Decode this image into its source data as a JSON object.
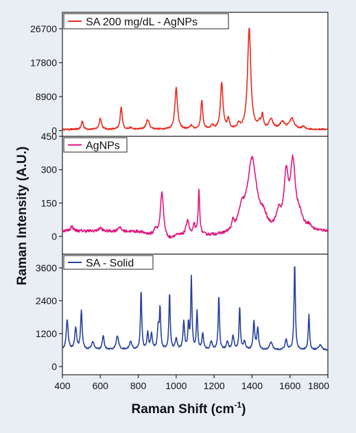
{
  "figure": {
    "xlabel_main": "Raman Shift (cm",
    "xlabel_sup": "-1",
    "xlabel_tail": ")",
    "ylabel": "Raman Intensity (A.U.)",
    "x_ticks": [
      "400",
      "600",
      "800",
      "1000",
      "1200",
      "1400",
      "1600",
      "1800"
    ]
  },
  "chart_data": [
    {
      "type": "line",
      "series": [
        {
          "name": "SA 200 mg/dL - AgNPs",
          "color": "#e8291c"
        }
      ],
      "xlim": [
        400,
        1800
      ],
      "ylim": [
        -1500,
        31000
      ],
      "y_ticks": [
        0,
        8900,
        17800,
        26700
      ],
      "y_tick_labels": [
        "0",
        "8900",
        "17800",
        "26700"
      ],
      "baseline": 300,
      "peaks": [
        [
          505,
          2200,
          6
        ],
        [
          600,
          3000,
          7
        ],
        [
          710,
          6000,
          6
        ],
        [
          760,
          400,
          8
        ],
        [
          850,
          2500,
          10
        ],
        [
          1000,
          11000,
          8
        ],
        [
          1080,
          1000,
          7
        ],
        [
          1135,
          7500,
          6
        ],
        [
          1190,
          1000,
          8
        ],
        [
          1240,
          12000,
          8
        ],
        [
          1275,
          2500,
          6
        ],
        [
          1330,
          1200,
          8
        ],
        [
          1385,
          26500,
          10
        ],
        [
          1440,
          1500,
          10
        ],
        [
          1455,
          3500,
          5
        ],
        [
          1500,
          2500,
          12
        ],
        [
          1560,
          1800,
          15
        ],
        [
          1610,
          2800,
          14
        ],
        [
          1670,
          700,
          8
        ]
      ]
    },
    {
      "type": "line",
      "series": [
        {
          "name": "AgNPs",
          "color": "#e0157f"
        }
      ],
      "xlim": [
        400,
        1800
      ],
      "ylim": [
        -80,
        450
      ],
      "y_ticks": [
        0,
        150,
        300,
        450
      ],
      "y_tick_labels": [
        "0",
        "150",
        "300",
        "450"
      ],
      "baseline": 10,
      "trend": [
        [
          400,
          15
        ],
        [
          800,
          10
        ],
        [
          960,
          -30
        ],
        [
          1000,
          -10
        ],
        [
          1250,
          -10
        ],
        [
          1800,
          10
        ]
      ],
      "peaks": [
        [
          450,
          20,
          8
        ],
        [
          600,
          15,
          10
        ],
        [
          700,
          20,
          10
        ],
        [
          890,
          30,
          8
        ],
        [
          925,
          210,
          10
        ],
        [
          1060,
          70,
          9
        ],
        [
          1095,
          50,
          5
        ],
        [
          1120,
          200,
          5
        ],
        [
          1300,
          40,
          7
        ],
        [
          1345,
          80,
          20
        ],
        [
          1400,
          330,
          30
        ],
        [
          1460,
          50,
          20
        ],
        [
          1540,
          70,
          15
        ],
        [
          1580,
          230,
          14
        ],
        [
          1615,
          290,
          16
        ],
        [
          1650,
          60,
          20
        ],
        [
          1700,
          20,
          15
        ]
      ]
    },
    {
      "type": "line",
      "series": [
        {
          "name": "SA - Solid",
          "color": "#26419a"
        }
      ],
      "xlim": [
        400,
        1800
      ],
      "ylim": [
        -300,
        4100
      ],
      "y_ticks": [
        0,
        1200,
        2400,
        3600
      ],
      "y_tick_labels": [
        "0",
        "1200",
        "2400",
        "3600"
      ],
      "baseline": 600,
      "peaks": [
        [
          425,
          1100,
          6
        ],
        [
          470,
          800,
          6
        ],
        [
          500,
          1400,
          5
        ],
        [
          560,
          300,
          8
        ],
        [
          615,
          500,
          6
        ],
        [
          690,
          500,
          8
        ],
        [
          760,
          300,
          8
        ],
        [
          815,
          2200,
          4
        ],
        [
          850,
          600,
          5
        ],
        [
          870,
          600,
          5
        ],
        [
          905,
          800,
          5
        ],
        [
          915,
          1500,
          4
        ],
        [
          965,
          2100,
          4
        ],
        [
          1000,
          400,
          6
        ],
        [
          1040,
          1000,
          5
        ],
        [
          1065,
          900,
          4
        ],
        [
          1080,
          2600,
          4
        ],
        [
          1110,
          1400,
          4
        ],
        [
          1140,
          600,
          5
        ],
        [
          1185,
          300,
          6
        ],
        [
          1225,
          2000,
          4
        ],
        [
          1270,
          300,
          6
        ],
        [
          1300,
          500,
          6
        ],
        [
          1335,
          1600,
          4
        ],
        [
          1360,
          300,
          6
        ],
        [
          1410,
          1000,
          5
        ],
        [
          1430,
          800,
          5
        ],
        [
          1500,
          300,
          8
        ],
        [
          1580,
          400,
          6
        ],
        [
          1625,
          3200,
          4
        ],
        [
          1700,
          1300,
          4
        ],
        [
          1760,
          200,
          8
        ]
      ]
    }
  ]
}
